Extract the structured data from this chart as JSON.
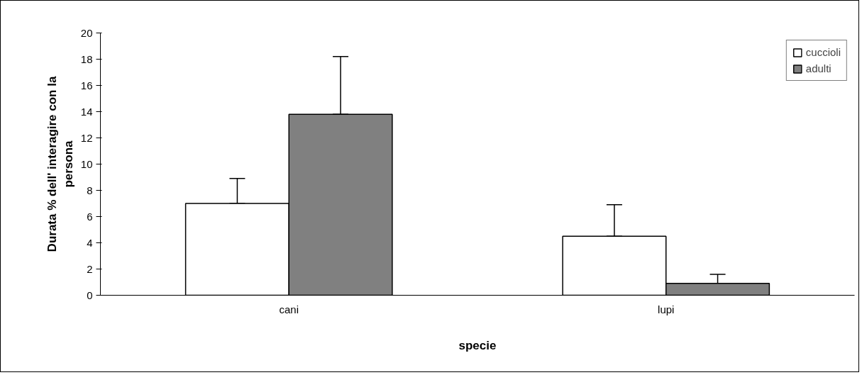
{
  "chart_data": {
    "type": "bar",
    "xlabel": "specie",
    "ylabel": "Durata % dell' interagire con la persona",
    "categories": [
      "cani",
      "lupi"
    ],
    "series": [
      {
        "name": "cuccioli",
        "color": "#ffffff",
        "values": [
          7.0,
          4.5
        ],
        "errors": [
          [
            7.0,
            8.9
          ],
          [
            4.5,
            6.9
          ]
        ]
      },
      {
        "name": "adulti",
        "color": "#808080",
        "values": [
          13.8,
          0.9
        ],
        "errors": [
          [
            13.8,
            18.2
          ],
          [
            0.9,
            1.6
          ]
        ]
      }
    ],
    "ylim": [
      0,
      20
    ],
    "yticks": [
      0,
      2,
      4,
      6,
      8,
      10,
      12,
      14,
      16,
      18,
      20
    ],
    "grid": false,
    "legend": "top right"
  }
}
